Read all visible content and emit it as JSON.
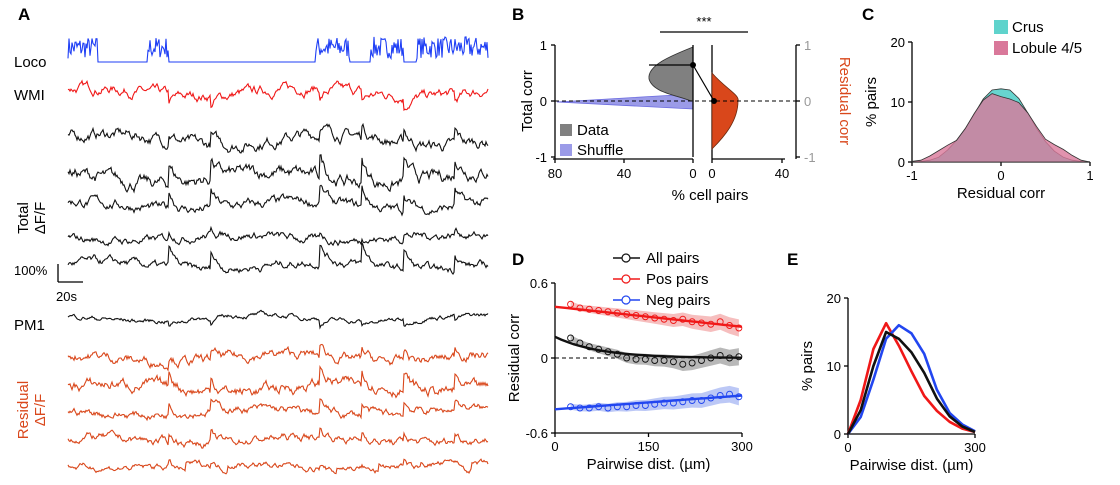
{
  "figure": {
    "panel_letters": [
      "A",
      "B",
      "C",
      "D",
      "E"
    ],
    "panel_a": {
      "trace_labels": {
        "loco": "Loco",
        "wmi": "WMI",
        "total": "Total\nΔF/F",
        "pm1": "PM1",
        "residual": "Residual\nΔF/F"
      },
      "scale_y": "100%",
      "scale_x": "20s",
      "colors": {
        "loco": "#1f3ff5",
        "wmi": "#f01818",
        "total": "#111111",
        "pm1": "#111111",
        "residual": "#d9471b"
      }
    },
    "panel_b": {
      "left_ylabel": "Total corr",
      "right_ylabel": "Residual corr",
      "xlabel": "% cell pairs",
      "significance": "***",
      "legend": [
        "Data",
        "Shuffle"
      ],
      "left_yticks": [
        "1",
        "0",
        "-1"
      ],
      "right_yticks": [
        "1",
        "0",
        "-1"
      ],
      "left_xticks": [
        "80",
        "40",
        "0"
      ],
      "right_xticks": [
        "0",
        "40"
      ],
      "colors": {
        "data": "#808080",
        "shuffle": "#9b9be8",
        "residual": "#d9471b"
      }
    }
  },
  "chart_data": [
    {
      "panel": "C",
      "type": "area",
      "xlabel": "Residual corr",
      "ylabel": "% pairs",
      "xlim": [
        -1,
        1
      ],
      "ylim": [
        0,
        20
      ],
      "xticks": [
        "-1",
        "0",
        "1"
      ],
      "yticks": [
        "0",
        "10",
        "20"
      ],
      "legend_position": "top-right",
      "series": [
        {
          "name": "Crus",
          "color": "#5fd3cc",
          "x": [
            -1.0,
            -0.9,
            -0.8,
            -0.7,
            -0.6,
            -0.5,
            -0.4,
            -0.3,
            -0.2,
            -0.1,
            0.0,
            0.1,
            0.2,
            0.3,
            0.4,
            0.5,
            0.6,
            0.7,
            0.8,
            0.9,
            1.0
          ],
          "y": [
            0,
            0.1,
            0.3,
            0.8,
            2,
            3.6,
            5.6,
            8,
            10.5,
            12,
            12.2,
            12,
            10.6,
            8.2,
            5.6,
            3.4,
            1.8,
            0.8,
            0.3,
            0.1,
            0
          ]
        },
        {
          "name": "Lobule 4/5",
          "color": "#d9789a",
          "x": [
            -1.0,
            -0.9,
            -0.8,
            -0.7,
            -0.6,
            -0.5,
            -0.4,
            -0.3,
            -0.2,
            -0.1,
            0.0,
            0.1,
            0.2,
            0.3,
            0.4,
            0.5,
            0.6,
            0.7,
            0.8,
            0.9,
            1.0
          ],
          "y": [
            0.1,
            0.3,
            1,
            1.9,
            2.8,
            3.6,
            5.6,
            8.1,
            10.3,
            11.4,
            10.9,
            10.5,
            9.9,
            8.2,
            5.9,
            3.8,
            2.9,
            2.1,
            1.1,
            0.3,
            0
          ]
        }
      ]
    },
    {
      "panel": "D",
      "type": "line",
      "xlabel": "Pairwise dist. (µm)",
      "ylabel": "Residual corr",
      "xlim": [
        0,
        300
      ],
      "ylim": [
        -0.6,
        0.6
      ],
      "xticks": [
        "0",
        "150",
        "300"
      ],
      "yticks": [
        "0.6",
        "0",
        "-0.6"
      ],
      "legend_position": "top-right",
      "series": [
        {
          "name": "All pairs",
          "color": "#111111",
          "x": [
            25,
            40,
            55,
            70,
            85,
            100,
            115,
            130,
            145,
            160,
            175,
            190,
            205,
            220,
            235,
            250,
            265,
            280,
            295
          ],
          "y": [
            0.16,
            0.12,
            0.09,
            0.07,
            0.05,
            0.03,
            0.0,
            -0.01,
            -0.01,
            -0.02,
            -0.02,
            -0.03,
            -0.05,
            -0.04,
            -0.02,
            0.0,
            0.02,
            0.0,
            0.01
          ],
          "fit": [
            0.17,
            0.0,
            0.0
          ],
          "band": "#9a9a9a"
        },
        {
          "name": "Pos pairs",
          "color": "#f01818",
          "x": [
            25,
            40,
            55,
            70,
            85,
            100,
            115,
            130,
            145,
            160,
            175,
            190,
            205,
            220,
            235,
            250,
            265,
            280,
            295
          ],
          "y": [
            0.43,
            0.4,
            0.39,
            0.38,
            0.37,
            0.36,
            0.35,
            0.34,
            0.33,
            0.32,
            0.31,
            0.3,
            0.31,
            0.29,
            0.28,
            0.27,
            0.29,
            0.26,
            0.24
          ],
          "fit": [
            0.41,
            0.25
          ],
          "band": "#f2a3a3"
        },
        {
          "name": "Neg pairs",
          "color": "#2246f0",
          "x": [
            25,
            40,
            55,
            70,
            85,
            100,
            115,
            130,
            145,
            160,
            175,
            190,
            205,
            220,
            235,
            250,
            265,
            280,
            295
          ],
          "y": [
            -0.39,
            -0.4,
            -0.4,
            -0.39,
            -0.4,
            -0.39,
            -0.39,
            -0.38,
            -0.38,
            -0.37,
            -0.36,
            -0.36,
            -0.35,
            -0.34,
            -0.34,
            -0.32,
            -0.3,
            -0.29,
            -0.31
          ],
          "fit": [
            -0.41,
            -0.3
          ],
          "band": "#9fb0f2"
        }
      ]
    },
    {
      "panel": "E",
      "type": "line",
      "xlabel": "Pairwise dist. (µm)",
      "ylabel": "% pairs",
      "xlim": [
        0,
        300
      ],
      "ylim": [
        0,
        20
      ],
      "xticks": [
        "0",
        "300"
      ],
      "yticks": [
        "0",
        "10",
        "20"
      ],
      "series": [
        {
          "name": "",
          "color": "#f01818",
          "x": [
            0,
            30,
            60,
            90,
            120,
            150,
            180,
            210,
            240,
            270,
            300
          ],
          "y": [
            0,
            5,
            12.5,
            16.3,
            13,
            9.2,
            5.6,
            3.4,
            1.8,
            0.8,
            0.3
          ]
        },
        {
          "name": "",
          "color": "#2246f0",
          "x": [
            0,
            30,
            60,
            90,
            120,
            150,
            180,
            210,
            240,
            270,
            300
          ],
          "y": [
            0,
            2.5,
            8,
            14,
            16,
            14.8,
            11.8,
            6.5,
            3.1,
            1.4,
            0.4
          ]
        },
        {
          "name": "",
          "color": "#111111",
          "x": [
            0,
            30,
            60,
            90,
            120,
            150,
            180,
            210,
            240,
            270,
            300
          ],
          "y": [
            0,
            3.5,
            10,
            15,
            14,
            12,
            9,
            5.2,
            2.6,
            1.1,
            0.3
          ]
        }
      ]
    }
  ]
}
